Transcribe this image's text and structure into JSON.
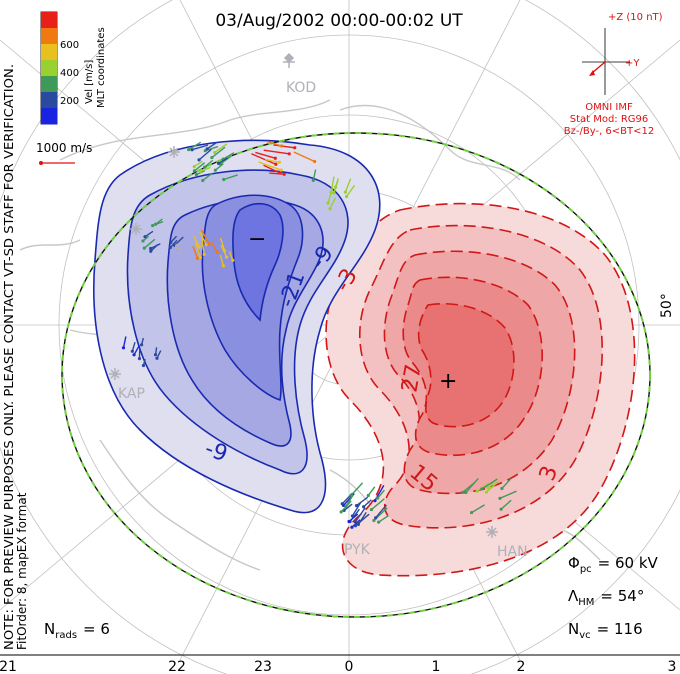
{
  "title": "03/Aug/2002 00:00-00:02 UT",
  "coords_label": "MLT coordinates",
  "velocity_scale": {
    "label": "Vel [m/s]",
    "ticks": [
      "600",
      "400",
      "200"
    ],
    "colors": [
      "#e8201a",
      "#f07a10",
      "#e8c020",
      "#9ad030",
      "#3f9a5a",
      "#2a4aa0",
      "#1a24e0"
    ]
  },
  "vector_scale_label": "1000 m/s",
  "imf": {
    "z_label": "+Z (10 nT)",
    "y_label": "+Y",
    "source": "OMNI IMF",
    "model": "Stat Mod: RG96",
    "condition": "Bz-/By-, 6<BT<12",
    "color": "#e01010"
  },
  "side_note_1": "NOTE: FOR PREVIEW PURPOSES ONLY. PLEASE CONTACT VT-SD STAFF FOR VERIFICATION.",
  "side_note_2": "FitOrder: 8, mapEX format",
  "lat_label": "50°",
  "stats": {
    "phi_label": "Φ",
    "phi_sub": "pc",
    "phi_value": "= 60 kV",
    "lambda_label": "Λ",
    "lambda_sub": "HM",
    "lambda_value": "= 54°",
    "nvc_label": "N",
    "nvc_sub": "vc",
    "nvc_value": "= 116",
    "nrads_label": "N",
    "nrads_sub": "rads",
    "nrads_value": "= 6"
  },
  "mlt_ticks": [
    "21",
    "22",
    "23",
    "0",
    "1",
    "2",
    "3"
  ],
  "stations": [
    "KOD",
    "KAP",
    "PYK",
    "HAN",
    "S"
  ],
  "contours": {
    "negative_labels": [
      "-21",
      "-9",
      "-9",
      "-3"
    ],
    "positive_labels": [
      "27",
      "15",
      "3",
      "3"
    ],
    "min_marker": "−",
    "max_marker": "+"
  },
  "colors": {
    "negative": "#1a2ab0",
    "positive": "#d01818",
    "boundary": "#70d040",
    "land": "#c8c8c8",
    "grid": "#c0c0c0"
  }
}
